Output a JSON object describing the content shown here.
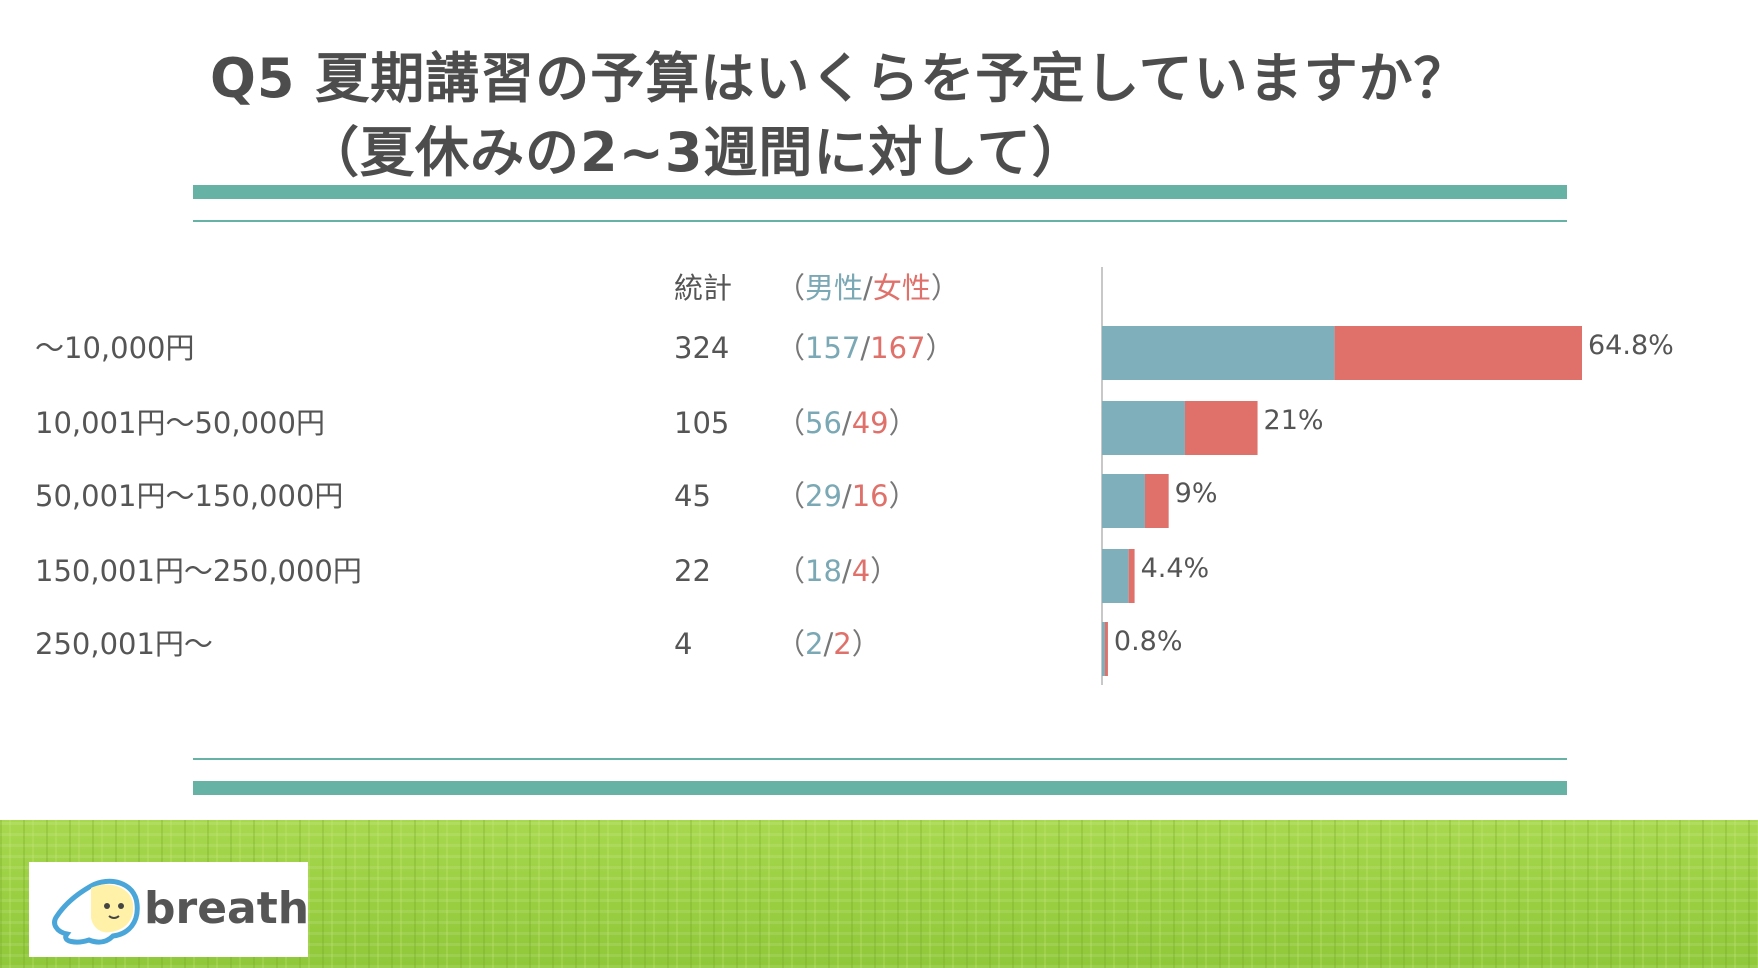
{
  "title": {
    "line1": "Q5 夏期講習の予算はいくらを予定していますか？",
    "line2": "（夏休みの2~3週間に対して）"
  },
  "headers": {
    "total": "統計",
    "open_paren": "（",
    "male": "男性",
    "slash": "/",
    "female": "女性",
    "close_paren": "）"
  },
  "rows": [
    {
      "label": "～10,000円",
      "total": "324",
      "male": "157",
      "female": "167",
      "pct": "64.8%"
    },
    {
      "label": "10,001円～50,000円",
      "total": "105",
      "male": "56",
      "female": "49",
      "pct": "21%"
    },
    {
      "label": "50,001円～150,000円",
      "total": "45",
      "male": "29",
      "female": "16",
      "pct": "9%"
    },
    {
      "label": "150,001円～250,000円",
      "total": "22",
      "male": "18",
      "female": "4",
      "pct": "4.4%"
    },
    {
      "label": "250,001円～",
      "total": "4",
      "male": "2",
      "female": "2",
      "pct": "0.8%"
    }
  ],
  "colors": {
    "male": "#80afbc",
    "female": "#e0706a",
    "accent": "#66b3a6"
  },
  "chart_data": {
    "type": "bar",
    "orientation": "horizontal",
    "stacked": true,
    "categories": [
      "～10,000円",
      "10,001円～50,000円",
      "50,001円～150,000円",
      "150,001円～250,000円",
      "250,001円～"
    ],
    "series": [
      {
        "name": "男性",
        "values": [
          157,
          56,
          29,
          18,
          2
        ]
      },
      {
        "name": "女性",
        "values": [
          167,
          49,
          16,
          4,
          2
        ]
      }
    ],
    "totals": [
      324,
      105,
      45,
      22,
      4
    ],
    "percent_labels": [
      "64.8%",
      "21%",
      "9%",
      "4.4%",
      "0.8%"
    ],
    "xlim": [
      0,
      500
    ]
  },
  "logo": {
    "text": "breath"
  }
}
